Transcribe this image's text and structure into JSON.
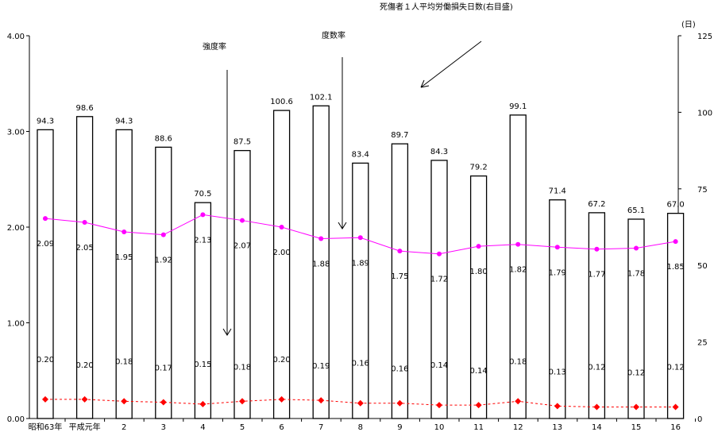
{
  "chart_data": {
    "type": "bar+line",
    "categories": [
      "昭和63年",
      "平成元年",
      "2",
      "3",
      "4",
      "5",
      "6",
      "7",
      "8",
      "9",
      "10",
      "11",
      "12",
      "13",
      "14",
      "15",
      "16"
    ],
    "series": [
      {
        "name": "死傷者１人平均労働損失日数(右目盛)",
        "type": "bar",
        "axis": "right",
        "values": [
          94.3,
          98.6,
          94.3,
          88.6,
          70.5,
          87.5,
          100.6,
          102.1,
          83.4,
          89.7,
          84.3,
          79.2,
          99.1,
          71.4,
          67.2,
          65.1,
          67.0
        ],
        "labels": [
          "94.3",
          "98.6",
          "94.3",
          "88.6",
          "70.5",
          "87.5",
          "100.6",
          "102.1",
          "83.4",
          "89.7",
          "84.3",
          "79.2",
          "99.1",
          "71.4",
          "67.2",
          "65.1",
          "67.0"
        ],
        "color": "#000000"
      },
      {
        "name": "度数率",
        "type": "line",
        "axis": "left",
        "values": [
          2.09,
          2.05,
          1.95,
          1.92,
          2.13,
          2.07,
          2.0,
          1.88,
          1.89,
          1.75,
          1.72,
          1.8,
          1.82,
          1.79,
          1.77,
          1.78,
          1.85
        ],
        "labels": [
          "2.09",
          "2.05",
          "1.95",
          "1.92",
          "2.13",
          "2.07",
          "2.00",
          "1.88",
          "1.89",
          "1.75",
          "1.72",
          "1.80",
          "1.82",
          "1.79",
          "1.77",
          "1.78",
          "1.85"
        ],
        "color": "#ff00ff"
      },
      {
        "name": "強度率",
        "type": "line",
        "axis": "left",
        "values": [
          0.2,
          0.2,
          0.18,
          0.17,
          0.15,
          0.18,
          0.2,
          0.19,
          0.16,
          0.16,
          0.14,
          0.14,
          0.18,
          0.13,
          0.12,
          0.12,
          0.12
        ],
        "labels": [
          "0.20",
          "0.20",
          "0.18",
          "0.17",
          "0.15",
          "0.18",
          "0.20",
          "0.19",
          "0.16",
          "0.16",
          "0.14",
          "0.14",
          "0.18",
          "0.13",
          "0.12",
          "0.12",
          "0.12"
        ],
        "color": "#ff0000"
      }
    ],
    "left_axis": {
      "ylim": [
        0,
        4
      ],
      "ticks": [
        "0.00",
        "1.00",
        "2.00",
        "3.00",
        "4.00"
      ]
    },
    "right_axis": {
      "ylim": [
        0,
        125
      ],
      "ticks": [
        "0",
        "25",
        "50",
        "75",
        "100",
        "125"
      ],
      "unit": "(日)"
    },
    "annotations": [
      "死傷者１人平均労働損失日数(右目盛)",
      "度数率",
      "強度率"
    ],
    "grid": false
  }
}
